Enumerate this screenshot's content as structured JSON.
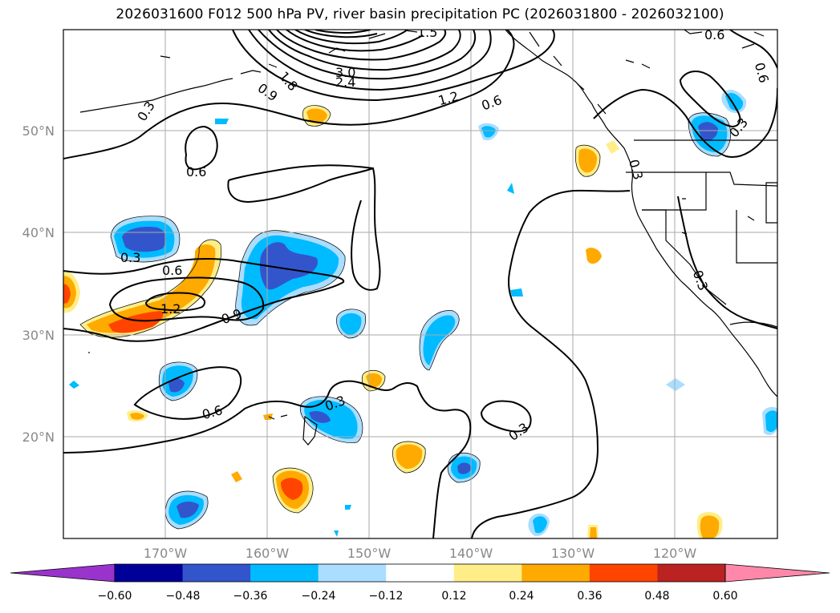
{
  "title": "2026031600 F012 500 hPa PV, river basin precipitation PC (2026031800 - 2026032100)",
  "lat_labels": [
    "50°N",
    "40°N",
    "30°N",
    "20°N"
  ],
  "lon_labels": [
    "170°W",
    "160°W",
    "150°W",
    "140°W",
    "130°W",
    "120°W"
  ],
  "contour_labels": [
    "0.3",
    "0.6",
    "0.9",
    "1.2",
    "1.5",
    "2.4",
    "3.0",
    "0.6",
    "0.6",
    "0.3",
    "0.6",
    "1.2",
    "0.9",
    "0.6",
    "0.3",
    "0.3",
    "0.3",
    "0.3",
    "0.6",
    "0.3",
    "1.8"
  ],
  "colorbar": {
    "ticks": [
      "−0.60",
      "−0.48",
      "−0.36",
      "−0.24",
      "−0.12",
      "0.12",
      "0.24",
      "0.36",
      "0.48",
      "0.60"
    ],
    "colors": [
      "#9933cc",
      "#000099",
      "#3355cc",
      "#00bbff",
      "#aaddff",
      "#ffffff",
      "#ffee88",
      "#ffaa00",
      "#ff4400",
      "#bb2222",
      "#ff88aa"
    ]
  },
  "fill_colors": {
    "neg_outer": "#aaddff",
    "neg_mid": "#00bbff",
    "neg_core": "#3355cc",
    "pos_outer": "#ffee88",
    "pos_mid": "#ffaa00",
    "pos_core": "#ff4400"
  }
}
